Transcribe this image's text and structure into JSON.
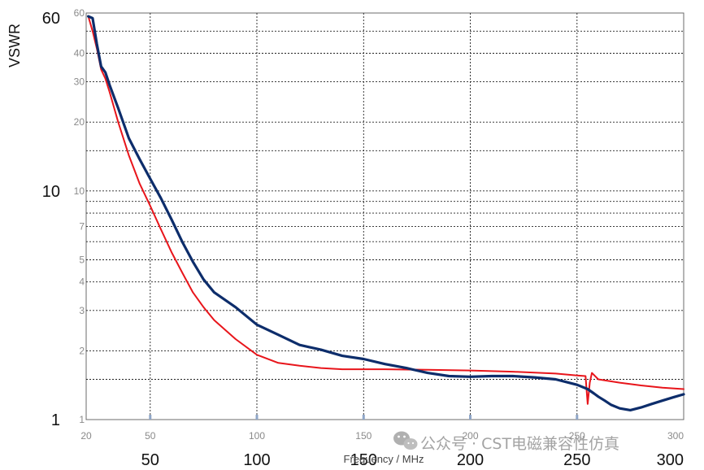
{
  "chart_data": {
    "type": "line",
    "ylabel": "VSWR",
    "xlabel": "Frequency / MHz",
    "xlim": [
      20,
      300
    ],
    "ylim": [
      1,
      60
    ],
    "yscale": "log",
    "grid": true,
    "inner_x_ticks": [
      "20",
      "50",
      "100",
      "150",
      "200",
      "250",
      "300"
    ],
    "outer_x_ticks": [
      "50",
      "100",
      "150",
      "200",
      "250",
      "300"
    ],
    "inner_y_ticks": [
      "60",
      "40",
      "30",
      "20",
      "10",
      "7",
      "5",
      "4",
      "3",
      "2",
      "1"
    ],
    "outer_y_ticks": [
      "60",
      "10",
      "1"
    ],
    "series": [
      {
        "color": "#0d2d6b",
        "x": [
          21,
          23,
          25,
          27,
          29,
          31,
          35,
          40,
          45,
          50,
          55,
          60,
          65,
          70,
          75,
          80,
          90,
          100,
          110,
          120,
          130,
          140,
          150,
          160,
          170,
          180,
          190,
          200,
          210,
          220,
          230,
          240,
          245,
          250,
          255,
          258,
          260,
          263,
          266,
          270,
          275,
          280,
          285,
          290,
          295,
          300
        ],
        "y": [
          58,
          57,
          44,
          35,
          33,
          29,
          23,
          17,
          13.8,
          11.3,
          9.3,
          7.5,
          6.0,
          4.9,
          4.1,
          3.6,
          3.1,
          2.6,
          2.35,
          2.12,
          2.02,
          1.9,
          1.84,
          1.75,
          1.68,
          1.6,
          1.55,
          1.54,
          1.55,
          1.55,
          1.53,
          1.5,
          1.46,
          1.42,
          1.36,
          1.3,
          1.26,
          1.21,
          1.16,
          1.12,
          1.1,
          1.13,
          1.17,
          1.21,
          1.25,
          1.29
        ]
      },
      {
        "color": "#e8151b",
        "x": [
          21,
          23,
          25,
          27,
          29,
          31,
          35,
          40,
          45,
          50,
          55,
          60,
          65,
          70,
          75,
          80,
          90,
          100,
          110,
          120,
          130,
          140,
          150,
          160,
          180,
          200,
          220,
          240,
          250,
          254,
          255,
          256,
          257,
          260,
          270,
          280,
          290,
          300
        ],
        "y": [
          58,
          50,
          42,
          34,
          31,
          27,
          20,
          14.3,
          10.8,
          8.6,
          6.8,
          5.4,
          4.4,
          3.6,
          3.1,
          2.72,
          2.25,
          1.92,
          1.77,
          1.72,
          1.68,
          1.66,
          1.66,
          1.66,
          1.65,
          1.64,
          1.62,
          1.59,
          1.56,
          1.55,
          1.17,
          1.45,
          1.6,
          1.5,
          1.45,
          1.41,
          1.38,
          1.36
        ]
      }
    ]
  },
  "watermark": "公众号 · CST电磁兼容性仿真"
}
